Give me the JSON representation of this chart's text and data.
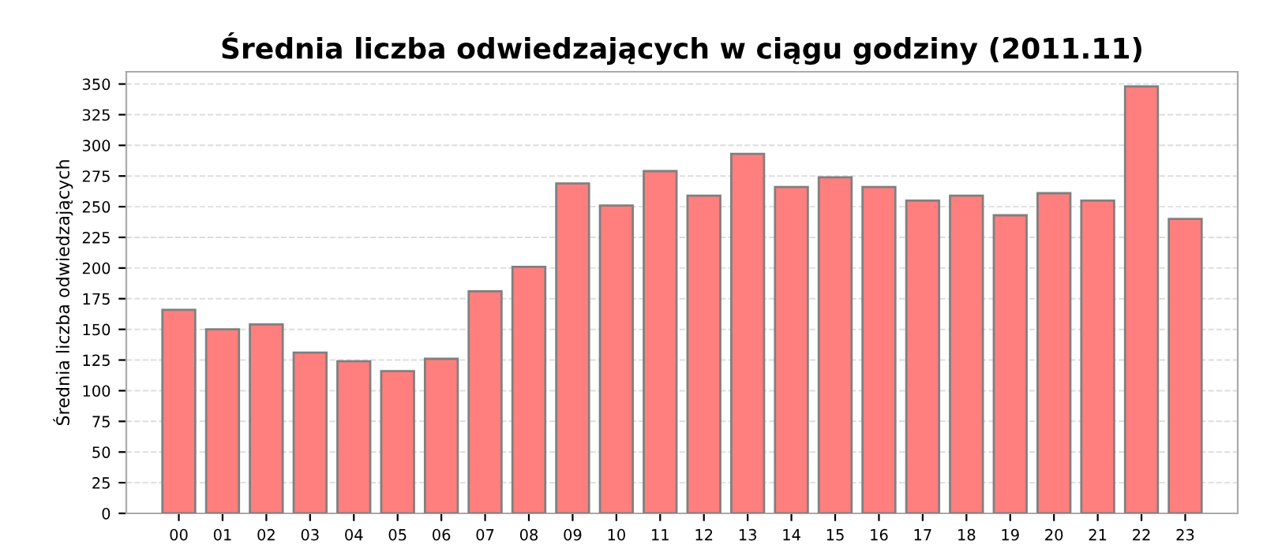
{
  "chart_data": {
    "type": "bar",
    "title": "Średnia liczba odwiedzających w ciągu godziny (2011.11)",
    "ylabel": "Średnia liczba odwiedzających",
    "categories": [
      "00",
      "01",
      "02",
      "03",
      "04",
      "05",
      "06",
      "07",
      "08",
      "09",
      "10",
      "11",
      "12",
      "13",
      "14",
      "15",
      "16",
      "17",
      "18",
      "19",
      "20",
      "21",
      "22",
      "23"
    ],
    "values": [
      166,
      150,
      154,
      131,
      124,
      116,
      126,
      181,
      201,
      269,
      251,
      279,
      259,
      293,
      266,
      274,
      266,
      255,
      259,
      243,
      261,
      255,
      348,
      240
    ],
    "color": "#ff7f7f",
    "ylim": [
      0,
      360
    ],
    "yticks": [
      0,
      25,
      50,
      75,
      100,
      125,
      150,
      175,
      200,
      225,
      250,
      275,
      300,
      325,
      350
    ],
    "grid": "y"
  }
}
